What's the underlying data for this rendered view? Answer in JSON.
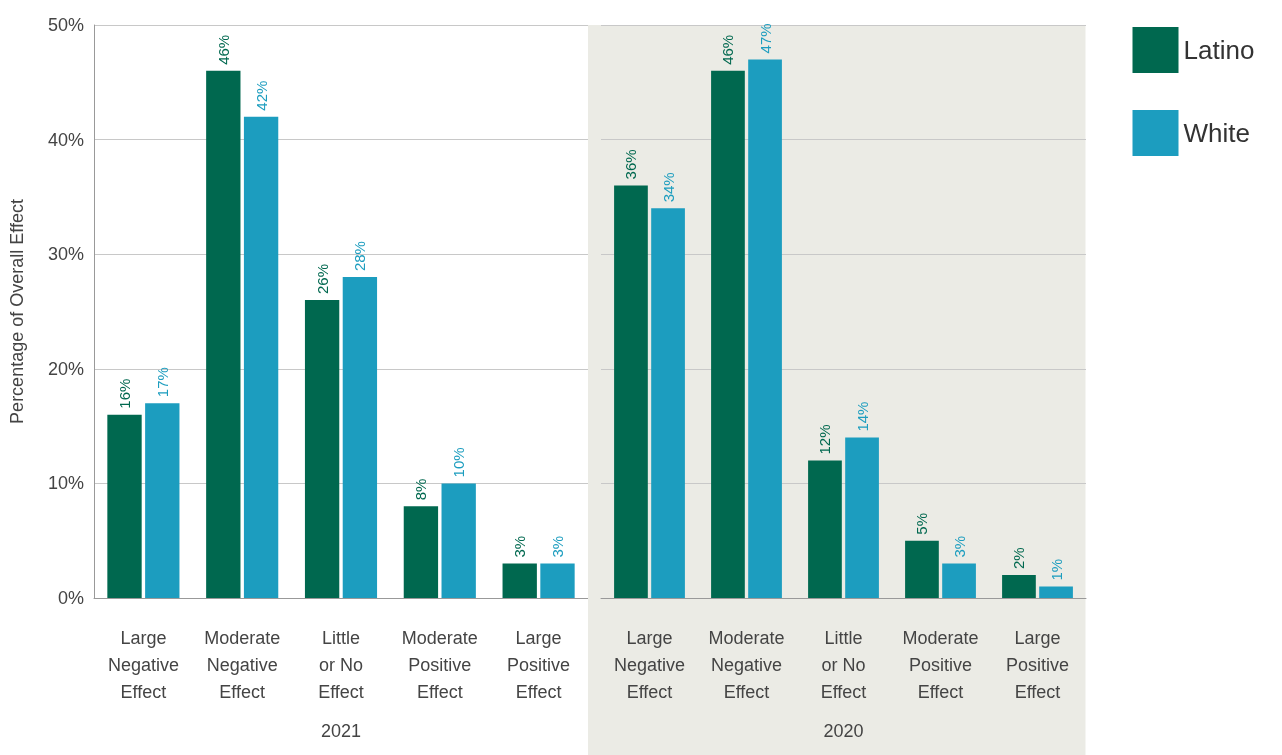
{
  "chart_data": [
    {
      "type": "bar",
      "ylabel": "Percentage of Overall Effect",
      "xlabel": "2021",
      "categories": [
        "Large\nNegative\nEffect",
        "Moderate\nNegative\nEffect",
        "Little\nor No\nEffect",
        "Moderate\nPositive\nEffect",
        "Large\nPositive\nEffect"
      ],
      "series": [
        {
          "color": "#00684f",
          "values": [
            16,
            46,
            26,
            8,
            3
          ],
          "value_labels": [
            "16%",
            "46%",
            "26%",
            "8%",
            "3%"
          ]
        },
        {
          "color": "#1c9dbf",
          "values": [
            17,
            42,
            28,
            10,
            3
          ],
          "value_labels": [
            "17%",
            "42%",
            "28%",
            "10%",
            "3%"
          ]
        }
      ],
      "ylim": [
        0,
        50
      ],
      "yticks": [
        {
          "value": 0,
          "label": "0%"
        },
        {
          "value": 10,
          "label": "10%"
        },
        {
          "value": 20,
          "label": "20%"
        },
        {
          "value": 30,
          "label": "30%"
        },
        {
          "value": 40,
          "label": "40%"
        },
        {
          "value": 50,
          "label": "50%"
        }
      ],
      "grid": "y"
    },
    {
      "type": "bar",
      "xlabel": "2020",
      "categories": [
        "Large\nNegative\nEffect",
        "Moderate\nNegative\nEffect",
        "Little\nor No\nEffect",
        "Moderate\nPositive\nEffect",
        "Large\nPositive\nEffect"
      ],
      "series": [
        {
          "name": "Latino",
          "color": "#00684f",
          "values": [
            36,
            46,
            12,
            5,
            2
          ],
          "value_labels": [
            "36%",
            "46%",
            "12%",
            "5%",
            "2%"
          ]
        },
        {
          "name": "White",
          "color": "#1c9dbf",
          "values": [
            34,
            47,
            14,
            3,
            1
          ],
          "value_labels": [
            "34%",
            "47%",
            "14%",
            "3%",
            "1%"
          ]
        }
      ],
      "ylim": [
        0,
        50
      ],
      "yticks": [
        {
          "value": 0,
          "label": null
        },
        {
          "value": 10,
          "label": null
        },
        {
          "value": 20,
          "label": null
        },
        {
          "value": 30,
          "label": null
        },
        {
          "value": 40,
          "label": null
        },
        {
          "value": 50,
          "label": null
        }
      ],
      "bands": [
        {
          "axis": "x",
          "from": "Large\nNegative\nEffect",
          "to": "Large\nPositive\nEffect",
          "color": "#ebebe5"
        }
      ],
      "grid": "y",
      "legend": "top right"
    }
  ]
}
